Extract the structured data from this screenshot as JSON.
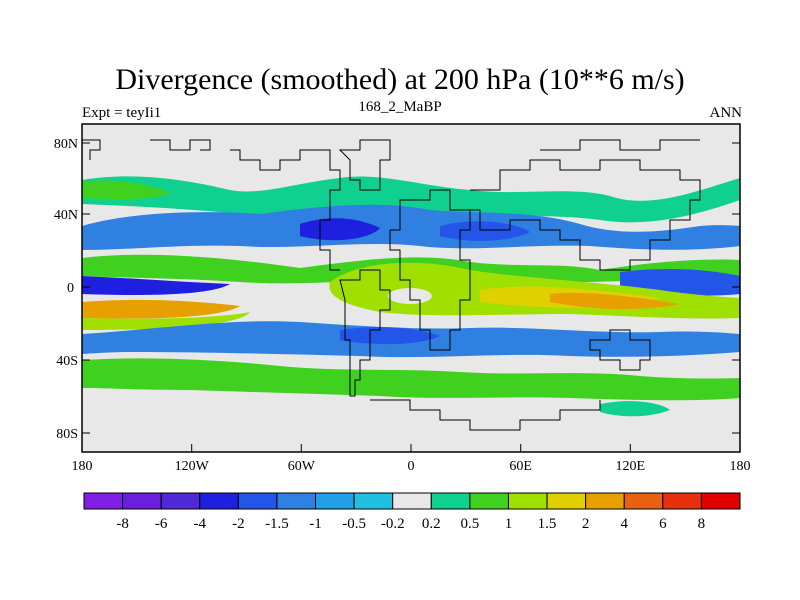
{
  "title": "Divergence (smoothed) at 200 hPa (10**6 m/s)",
  "subtitle_left": "Expt = teyIi1",
  "subtitle_center": "168_2_MaBP",
  "subtitle_right": "ANN",
  "lat_labels": [
    "80N",
    "40N",
    "0",
    "40S",
    "80S"
  ],
  "lon_labels": [
    "180",
    "120W",
    "60W",
    "0",
    "60E",
    "120E",
    "180"
  ],
  "colorbar": {
    "colors": [
      "#7f1fe6",
      "#6a1ee0",
      "#4f28d8",
      "#1f1fe0",
      "#2255e8",
      "#2f80e0",
      "#1fa0e8",
      "#20c0e0",
      "#e8e8e8",
      "#10d090",
      "#40d020",
      "#a0e000",
      "#e0d000",
      "#e8a000",
      "#e86010",
      "#e83010",
      "#e00000"
    ],
    "labels": [
      "-8",
      "-6",
      "-4",
      "-2",
      "-1.5",
      "-1",
      "-0.5",
      "-0.2",
      "0.2",
      "0.5",
      "1",
      "1.5",
      "2",
      "4",
      "6",
      "8"
    ]
  }
}
